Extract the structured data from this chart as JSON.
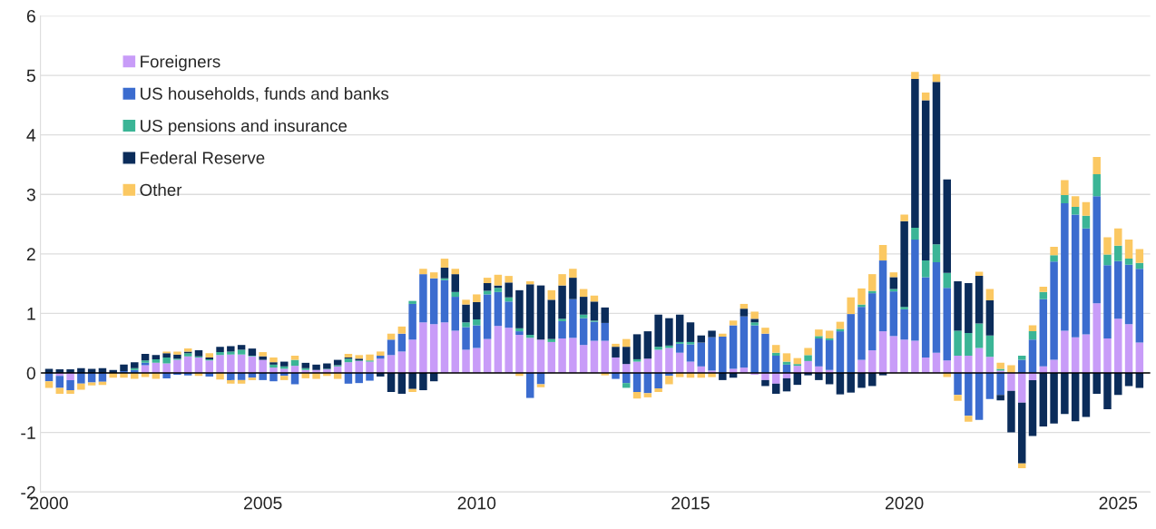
{
  "chart_data": {
    "type": "bar",
    "stacked": true,
    "x": [
      2000,
      2000.25,
      2000.5,
      2000.75,
      2001,
      2001.25,
      2001.5,
      2001.75,
      2002,
      2002.25,
      2002.5,
      2002.75,
      2003,
      2003.25,
      2003.5,
      2003.75,
      2004,
      2004.25,
      2004.5,
      2004.75,
      2005,
      2005.25,
      2005.5,
      2005.75,
      2006,
      2006.25,
      2006.5,
      2006.75,
      2007,
      2007.25,
      2007.5,
      2007.75,
      2008,
      2008.25,
      2008.5,
      2008.75,
      2009,
      2009.25,
      2009.5,
      2009.75,
      2010,
      2010.25,
      2010.5,
      2010.75,
      2011,
      2011.25,
      2011.5,
      2011.75,
      2012,
      2012.25,
      2012.5,
      2012.75,
      2013,
      2013.25,
      2013.5,
      2013.75,
      2014,
      2014.25,
      2014.5,
      2014.75,
      2015,
      2015.25,
      2015.5,
      2015.75,
      2016,
      2016.25,
      2016.5,
      2016.75,
      2017,
      2017.25,
      2017.5,
      2017.75,
      2018,
      2018.25,
      2018.5,
      2018.75,
      2019,
      2019.25,
      2019.5,
      2019.75,
      2020,
      2020.25,
      2020.5,
      2020.75,
      2021,
      2021.25,
      2021.5,
      2021.75,
      2022,
      2022.25,
      2022.5,
      2022.75,
      2023,
      2023.25,
      2023.5,
      2023.75,
      2024,
      2024.25,
      2024.5,
      2024.75,
      2025,
      2025.25,
      2025.5
    ],
    "series": [
      {
        "name": "Foreigners",
        "color": "#c89cf8",
        "values": [
          0,
          -0.05,
          -0.12,
          0,
          0,
          0,
          0,
          0,
          0,
          0.13,
          0.17,
          0.16,
          0.22,
          0.28,
          0.26,
          0.21,
          0.3,
          0.31,
          0.31,
          0.28,
          0.22,
          0.09,
          0.07,
          0.12,
          0.05,
          0.05,
          0.06,
          0.11,
          0.18,
          0.2,
          0.19,
          0.24,
          0.3,
          0.36,
          0.56,
          0.85,
          0.82,
          0.85,
          0.71,
          0.39,
          0.42,
          0.57,
          0.79,
          0.76,
          0.64,
          0.59,
          0.56,
          0.52,
          0.58,
          0.59,
          0.47,
          0.54,
          0.54,
          0.26,
          0.15,
          0.19,
          0.24,
          0.39,
          0.42,
          0.34,
          0.19,
          0.11,
          0.04,
          0,
          0.07,
          0.09,
          -0.03,
          -0.12,
          -0.18,
          -0.09,
          0.12,
          0.2,
          0.11,
          0.05,
          0,
          0,
          0.22,
          0.38,
          0.7,
          0.62,
          0.56,
          0.54,
          0.26,
          0.34,
          0.21,
          0.29,
          0.29,
          0.42,
          0.27,
          0.04,
          -0.3,
          -0.5,
          -0.12,
          0.11,
          0.22,
          0.71,
          0.6,
          0.65,
          1.17,
          0.58,
          0.91,
          0.82,
          0.51
        ]
      },
      {
        "name": "US households, funds and banks",
        "color": "#3b6ccf",
        "values": [
          -0.14,
          -0.2,
          -0.17,
          -0.18,
          -0.16,
          -0.15,
          0,
          0.03,
          0.05,
          0.04,
          0,
          -0.09,
          -0.03,
          -0.04,
          0,
          -0.06,
          0,
          -0.12,
          -0.12,
          -0.08,
          -0.12,
          -0.14,
          -0.05,
          -0.19,
          0,
          0,
          0,
          0,
          -0.18,
          -0.17,
          -0.13,
          0.05,
          0.26,
          0.3,
          0.6,
          0.81,
          0.77,
          0.71,
          0.57,
          0.38,
          0.38,
          0.75,
          0.57,
          0.44,
          0.06,
          -0.42,
          -0.19,
          0,
          0.29,
          0.65,
          0.45,
          0.32,
          0.3,
          -0.1,
          -0.17,
          -0.32,
          -0.34,
          -0.26,
          -0.05,
          0.15,
          0.29,
          0.4,
          0.56,
          0.61,
          0.73,
          0.86,
          0.8,
          0.66,
          0.29,
          0.14,
          0,
          0,
          0.47,
          0.5,
          0.7,
          0.99,
          0.89,
          0.96,
          1.19,
          0.75,
          0.51,
          1.7,
          1.35,
          1.52,
          1.22,
          -0.37,
          -0.72,
          -0.79,
          -0.44,
          -0.37,
          0,
          0.22,
          0.56,
          1.13,
          1.65,
          2.14,
          2.06,
          1.78,
          1.8,
          1.23,
          0.97,
          1.0,
          1.24
        ]
      },
      {
        "name": "US pensions and insurance",
        "color": "#3bb596",
        "values": [
          0,
          0,
          0,
          0,
          0,
          0,
          0,
          0,
          0.03,
          0.04,
          0.06,
          0.1,
          0.02,
          0.05,
          0.02,
          0.02,
          0.05,
          0.05,
          0.08,
          0.01,
          0,
          0.05,
          0.04,
          0.1,
          0.03,
          0,
          0.01,
          0.02,
          0.06,
          0.01,
          0.02,
          0,
          0,
          0,
          0.05,
          0,
          0,
          0.03,
          0.08,
          0.08,
          0.1,
          0.06,
          0.07,
          0.07,
          0.05,
          0.05,
          0,
          0.05,
          0.04,
          0,
          0.06,
          0.02,
          0,
          0,
          -0.08,
          0.04,
          0,
          0.05,
          0.04,
          0.03,
          0.04,
          0,
          0,
          0,
          0,
          0,
          0.05,
          0,
          0.05,
          0.05,
          0.03,
          0.1,
          0.04,
          0.03,
          0.04,
          0,
          0.04,
          0.04,
          0,
          0.04,
          0.04,
          0.2,
          0.28,
          0.3,
          0.25,
          0.42,
          0.38,
          0.41,
          0.36,
          0.03,
          0,
          0.07,
          0.14,
          0.12,
          0.11,
          0.14,
          0.13,
          0.21,
          0.37,
          0.18,
          0.26,
          0.1,
          0.1
        ]
      },
      {
        "name": "Federal Reserve",
        "color": "#0b2c5a",
        "values": [
          0.07,
          0.06,
          0.06,
          0.08,
          0.07,
          0.08,
          0.05,
          0.11,
          0.1,
          0.11,
          0.07,
          0.07,
          0.07,
          0.03,
          0.1,
          0.03,
          0.09,
          0.09,
          0.08,
          0.12,
          0.06,
          0.04,
          0.08,
          0,
          0.09,
          0.09,
          0.09,
          0.09,
          0.02,
          0.03,
          0,
          -0.06,
          -0.32,
          -0.35,
          -0.27,
          -0.29,
          -0.14,
          0.18,
          0.3,
          0.3,
          0.29,
          0.13,
          0.04,
          0.25,
          0.64,
          0.85,
          0.91,
          0.66,
          0.56,
          0.36,
          0.3,
          0.32,
          0.26,
          0.18,
          0.29,
          0.42,
          0.46,
          0.54,
          0.46,
          0.46,
          0.33,
          0.12,
          0.11,
          -0.12,
          -0.08,
          0.13,
          0.06,
          -0.1,
          -0.17,
          -0.22,
          -0.2,
          -0.04,
          -0.12,
          -0.19,
          -0.36,
          -0.33,
          -0.25,
          -0.22,
          -0.04,
          0.2,
          1.44,
          2.5,
          2.69,
          2.73,
          1.57,
          0.83,
          0.84,
          0.8,
          0.59,
          -0.09,
          -0.7,
          -1.02,
          -0.94,
          -0.9,
          -0.85,
          -0.69,
          -0.81,
          -0.74,
          -0.35,
          -0.61,
          -0.37,
          -0.22,
          -0.25
        ]
      },
      {
        "name": "Other",
        "color": "#fbc862",
        "values": [
          -0.11,
          -0.1,
          -0.06,
          -0.1,
          -0.05,
          -0.05,
          -0.08,
          -0.08,
          -0.1,
          -0.07,
          -0.1,
          0.03,
          0.05,
          0.05,
          -0.05,
          0.07,
          -0.11,
          -0.06,
          -0.06,
          -0.04,
          0.07,
          0.08,
          -0.07,
          0.07,
          -0.09,
          -0.1,
          -0.05,
          -0.1,
          0.06,
          0.06,
          0.1,
          0.07,
          0.1,
          0.12,
          -0.05,
          0.09,
          0.1,
          0.15,
          0.09,
          0.08,
          0.13,
          0.09,
          0.18,
          0.11,
          -0.05,
          0.05,
          -0.05,
          0.16,
          0.19,
          0.15,
          0.13,
          0.1,
          -0.04,
          0.05,
          0.13,
          -0.11,
          -0.07,
          -0.06,
          -0.14,
          -0.07,
          -0.08,
          -0.08,
          -0.07,
          0.05,
          0.08,
          0.08,
          0.12,
          0.1,
          0.13,
          0.14,
          0.1,
          0.12,
          0.11,
          0.13,
          0.12,
          0.28,
          0.27,
          0.28,
          0.26,
          0.08,
          0.11,
          0.12,
          0.13,
          0.13,
          -0.07,
          -0.1,
          -0.1,
          0.07,
          0.19,
          0.1,
          0.13,
          -0.08,
          0.1,
          0.09,
          0.14,
          0.25,
          0.18,
          0.23,
          0.29,
          0.29,
          0.29,
          0.32,
          0.23
        ]
      }
    ],
    "xlim": [
      1999.8,
      2025.75
    ],
    "xticks": [
      2000,
      2005,
      2010,
      2015,
      2020,
      2025
    ],
    "ylim": [
      -2,
      6
    ],
    "yticks": [
      -2,
      -1,
      0,
      1,
      2,
      3,
      4,
      5,
      6
    ],
    "ref_lines": [
      {
        "axis": "y",
        "value": 0,
        "color": "#000000"
      }
    ],
    "grid": "y",
    "legend": "top left"
  }
}
